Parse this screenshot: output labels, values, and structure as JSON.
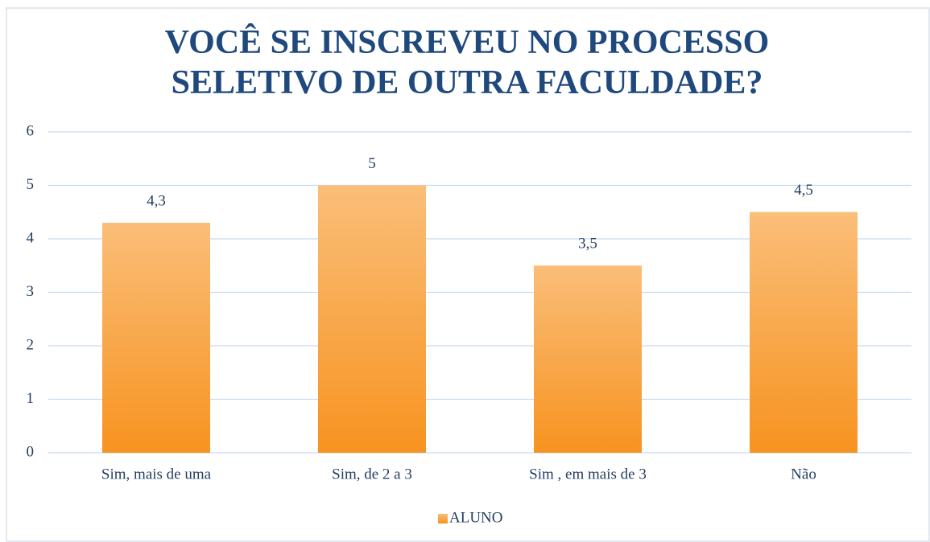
{
  "chart_data": {
    "type": "bar",
    "title": "VOCÊ SE INSCREVEU NO PROCESSO SELETIVO DE OUTRA FACULDADE?",
    "categories": [
      "Sim, mais de uma",
      "Sim, de 2 a 3",
      "Sim , em mais de 3",
      "Não"
    ],
    "series": [
      {
        "name": "ALUNO",
        "color": "#f79320",
        "values": [
          4.3,
          5,
          3.5,
          4.5
        ],
        "value_labels": [
          "4,3",
          "5",
          "3,5",
          "4,5"
        ]
      }
    ],
    "ylim": [
      0,
      6
    ],
    "yticks": [
      0,
      1,
      2,
      3,
      4,
      5,
      6
    ],
    "grid": true,
    "legend": "bottom"
  }
}
